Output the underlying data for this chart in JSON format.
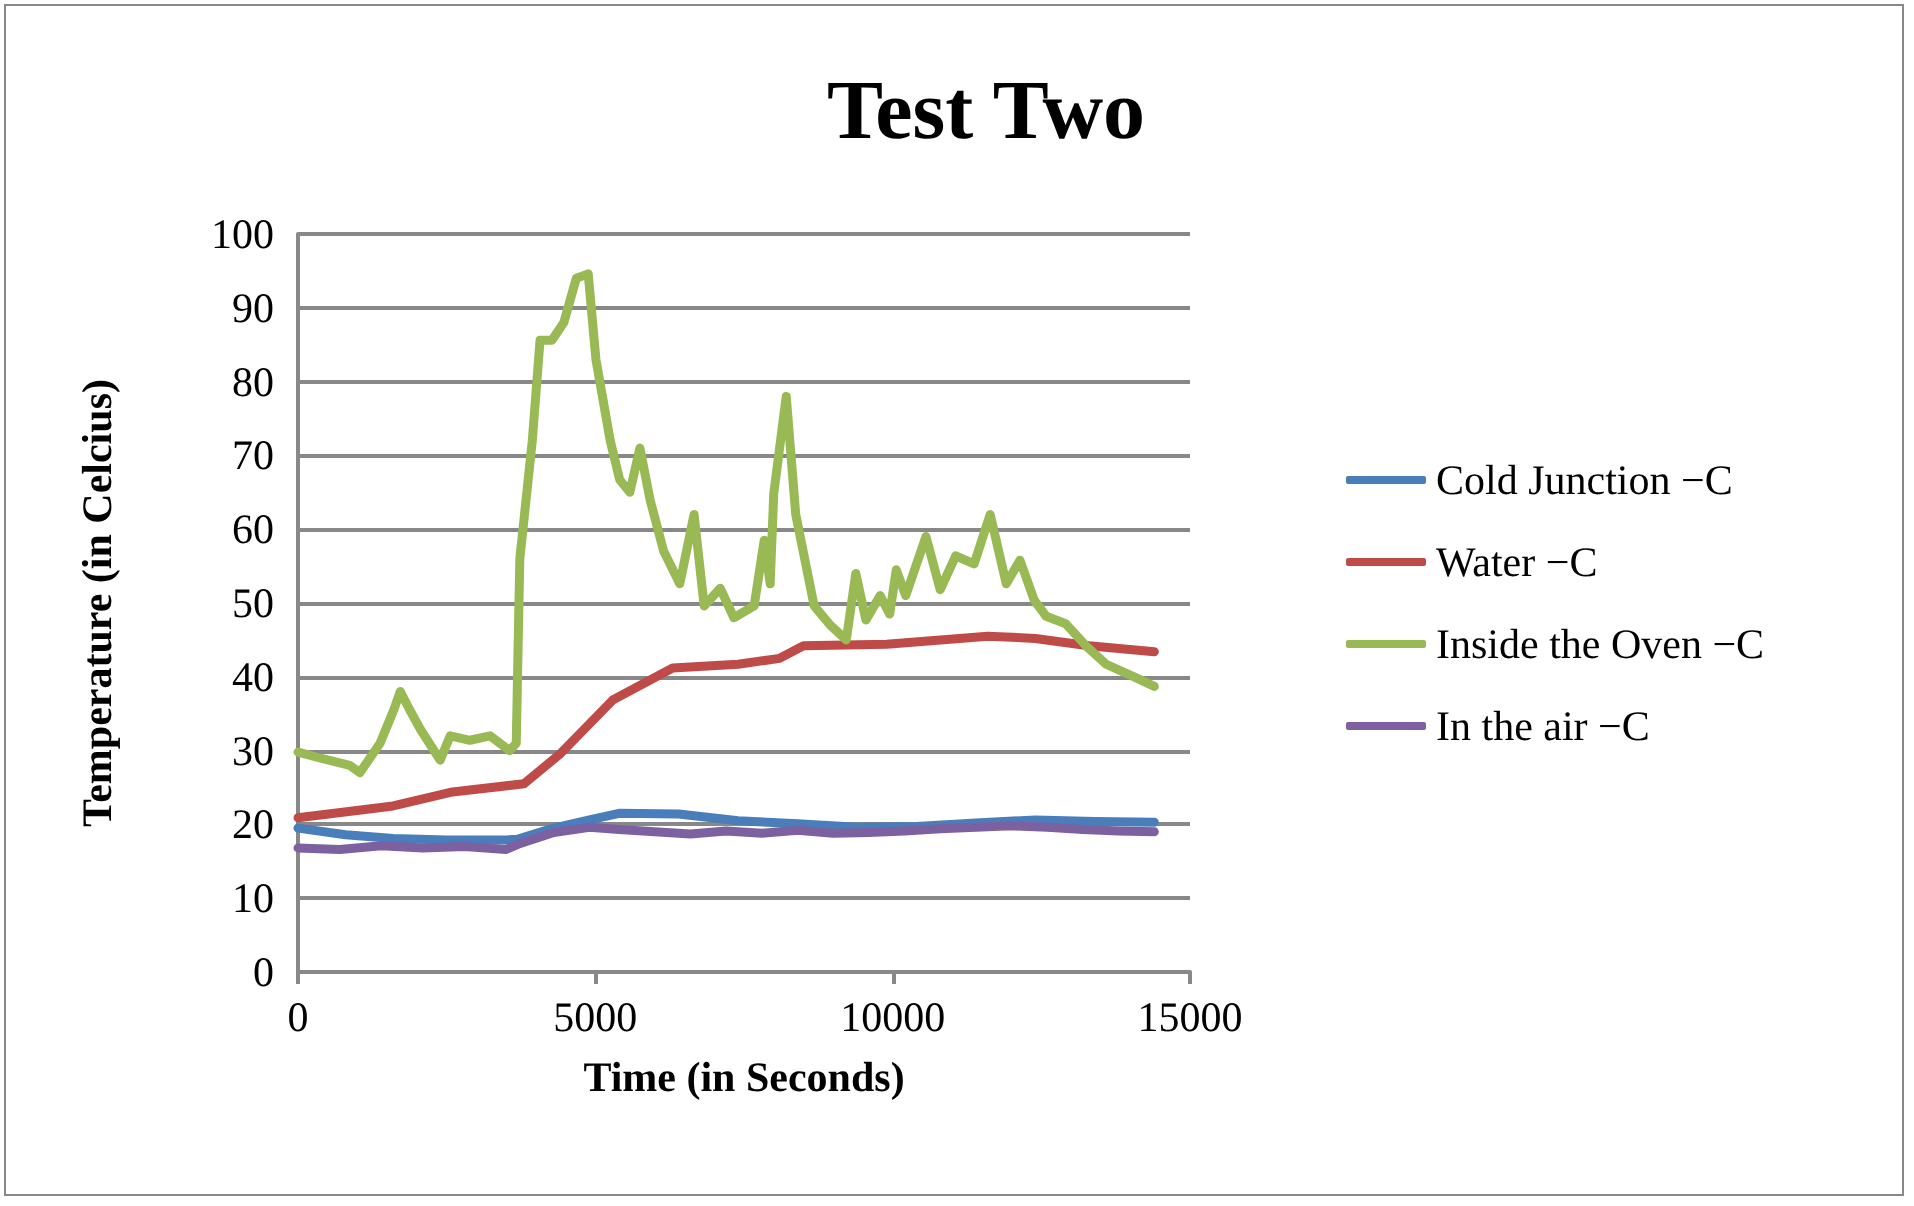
{
  "chart_data": {
    "type": "line",
    "title": "Test Two",
    "xlabel": "Time (in Seconds)",
    "ylabel": "Temperature (in Celcius)",
    "xlim": [
      0,
      15000
    ],
    "xticks": [
      0,
      5000,
      10000,
      15000
    ],
    "ylim": [
      0,
      100
    ],
    "yticks": [
      0,
      10,
      20,
      30,
      40,
      50,
      60,
      70,
      80,
      90,
      100
    ],
    "grid": "y",
    "legend": "right",
    "marker": "none",
    "line_style": "solid",
    "series": [
      {
        "name": "Cold Junction −C",
        "color": "#4a7ebb",
        "x": [
          0,
          800,
          1600,
          2500,
          3500,
          3700,
          4300,
          4900,
          5400,
          6400,
          7400,
          8400,
          9400,
          10400,
          11400,
          12400,
          13400,
          14400
        ],
        "values": [
          19.5,
          18.6,
          18.1,
          17.9,
          17.9,
          18.0,
          19.5,
          20.6,
          21.5,
          21.4,
          20.5,
          20.1,
          19.6,
          19.7,
          20.2,
          20.6,
          20.4,
          20.3
        ]
      },
      {
        "name": "Water −C",
        "color": "#be4b48",
        "x": [
          0,
          1600,
          2600,
          3800,
          4400,
          5300,
          6300,
          7400,
          8100,
          8500,
          9900,
          11600,
          12400,
          13300,
          14400
        ],
        "values": [
          20.9,
          22.5,
          24.4,
          25.5,
          29.5,
          36.9,
          41.2,
          41.7,
          42.5,
          44.2,
          44.4,
          45.5,
          45.2,
          44.2,
          43.4
        ]
      },
      {
        "name": "Inside the Oven −C",
        "color": "#98b954",
        "x": [
          0,
          370,
          870,
          1040,
          1380,
          1610,
          1720,
          1880,
          2050,
          2390,
          2560,
          2890,
          3230,
          3560,
          3670,
          3730,
          3940,
          4070,
          4270,
          4470,
          4680,
          4880,
          5010,
          5250,
          5410,
          5580,
          5750,
          5920,
          6150,
          6420,
          6660,
          6830,
          7100,
          7330,
          7670,
          7840,
          7940,
          8000,
          8210,
          8370,
          8680,
          8950,
          9220,
          9380,
          9550,
          9790,
          9950,
          10060,
          10220,
          10560,
          10800,
          11060,
          11370,
          11640,
          11910,
          12140,
          12380,
          12580,
          12910,
          13250,
          13590,
          14060,
          14400
        ],
        "values": [
          29.8,
          29,
          28,
          27,
          31,
          35.5,
          38,
          35.5,
          33,
          28.7,
          32,
          31.4,
          32,
          30,
          31,
          56,
          72,
          85.6,
          85.6,
          88,
          94,
          94.6,
          83,
          72,
          66.7,
          65,
          71,
          64,
          57,
          52.6,
          62,
          49.6,
          52,
          48,
          49.6,
          58.5,
          52.6,
          64.8,
          78,
          62,
          49.6,
          47,
          45,
          54,
          47.7,
          51,
          48.5,
          54.5,
          51,
          59,
          51.8,
          56.4,
          55.3,
          62,
          52.6,
          55.8,
          50.4,
          48.2,
          47.2,
          44.2,
          41.7,
          40,
          38.7
        ]
      },
      {
        "name": "In the air −C",
        "color": "#7d60a0",
        "x": [
          0,
          700,
          1400,
          2100,
          2800,
          3500,
          3700,
          4300,
          4900,
          5400,
          6000,
          6600,
          7200,
          7800,
          8400,
          9000,
          9600,
          10200,
          10800,
          11400,
          12000,
          12600,
          13200,
          13800,
          14400
        ],
        "values": [
          16.8,
          16.6,
          17.1,
          16.8,
          17.0,
          16.6,
          17.3,
          18.9,
          19.6,
          19.3,
          19.0,
          18.7,
          19.1,
          18.8,
          19.2,
          18.8,
          18.9,
          19.1,
          19.4,
          19.6,
          19.8,
          19.6,
          19.3,
          19.1,
          19.0
        ]
      }
    ]
  }
}
